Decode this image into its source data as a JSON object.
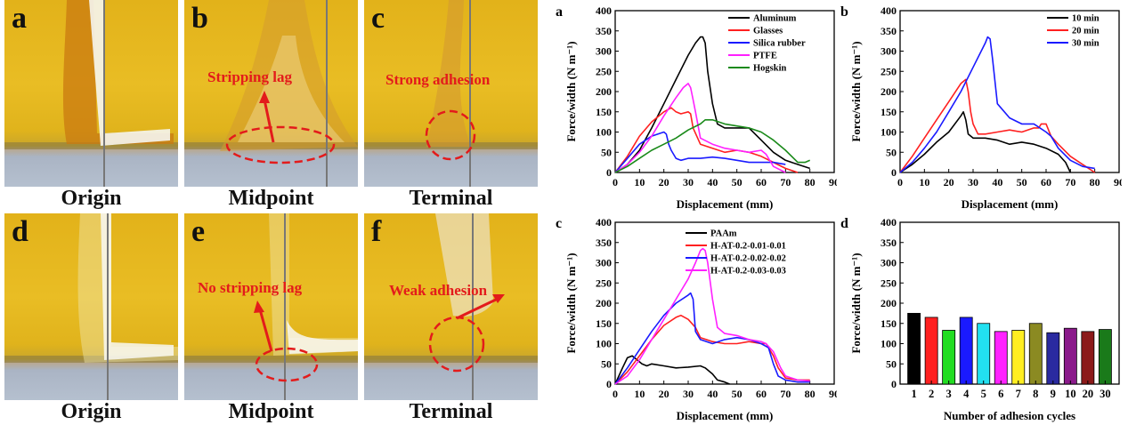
{
  "photos": [
    {
      "letter": "a",
      "caption": "Origin"
    },
    {
      "letter": "b",
      "caption": "Midpoint",
      "annotation": "Stripping lag"
    },
    {
      "letter": "c",
      "caption": "Terminal",
      "annotation": "Strong adhesion"
    },
    {
      "letter": "d",
      "caption": "Origin"
    },
    {
      "letter": "e",
      "caption": "Midpoint",
      "annotation": "No stripping lag"
    },
    {
      "letter": "f",
      "caption": "Terminal",
      "annotation": "Weak adhesion"
    }
  ],
  "chart_data": [
    {
      "panel": "a",
      "type": "line",
      "xlabel": "Displacement (mm)",
      "ylabel": "Force/width (N m⁻¹)",
      "xlim": [
        0,
        90
      ],
      "ylim": [
        0,
        400
      ],
      "xticks": [
        0,
        10,
        20,
        30,
        40,
        50,
        60,
        70,
        80,
        90
      ],
      "yticks": [
        0,
        50,
        100,
        150,
        200,
        250,
        300,
        350,
        400
      ],
      "series": [
        {
          "name": "Aluminum",
          "color": "#000000",
          "x": [
            0,
            5,
            10,
            15,
            20,
            25,
            30,
            33,
            35,
            36,
            37,
            38,
            40,
            42,
            45,
            50,
            55,
            60,
            65,
            70,
            75,
            80
          ],
          "y": [
            0,
            20,
            55,
            110,
            170,
            230,
            290,
            320,
            335,
            335,
            320,
            250,
            170,
            120,
            110,
            110,
            110,
            80,
            50,
            30,
            20,
            10
          ]
        },
        {
          "name": "Glasses",
          "color": "#ff2020",
          "x": [
            0,
            5,
            10,
            15,
            20,
            23,
            25,
            27,
            30,
            31,
            32,
            35,
            40,
            45,
            50,
            55,
            60,
            65,
            70,
            75
          ],
          "y": [
            0,
            40,
            90,
            125,
            150,
            160,
            150,
            145,
            150,
            145,
            110,
            70,
            60,
            50,
            55,
            50,
            40,
            25,
            10,
            0
          ]
        },
        {
          "name": "Silica rubber",
          "color": "#1a1aff",
          "x": [
            0,
            5,
            10,
            15,
            20,
            21,
            22,
            23,
            25,
            27,
            30,
            35,
            40,
            45,
            50,
            55,
            60,
            65,
            70
          ],
          "y": [
            0,
            35,
            70,
            90,
            100,
            95,
            70,
            55,
            35,
            30,
            35,
            35,
            38,
            35,
            30,
            25,
            25,
            25,
            20
          ]
        },
        {
          "name": "PTFE",
          "color": "#ff20ff",
          "x": [
            0,
            5,
            10,
            15,
            20,
            25,
            28,
            30,
            31,
            32,
            33,
            35,
            40,
            45,
            50,
            55,
            60,
            62,
            65,
            70
          ],
          "y": [
            0,
            20,
            50,
            90,
            140,
            185,
            210,
            220,
            210,
            180,
            150,
            85,
            70,
            60,
            55,
            50,
            55,
            45,
            15,
            0
          ]
        },
        {
          "name": "Hogskin",
          "color": "#1a8a1a",
          "x": [
            0,
            5,
            10,
            15,
            20,
            25,
            30,
            35,
            37,
            40,
            45,
            50,
            55,
            60,
            65,
            70,
            75,
            78,
            80
          ],
          "y": [
            0,
            15,
            35,
            55,
            70,
            85,
            105,
            120,
            130,
            130,
            120,
            115,
            110,
            100,
            80,
            55,
            25,
            25,
            30
          ]
        }
      ]
    },
    {
      "panel": "b",
      "type": "line",
      "xlabel": "Displacement (mm)",
      "ylabel": "Force/width (N m⁻¹)",
      "xlim": [
        0,
        90
      ],
      "ylim": [
        0,
        400
      ],
      "xticks": [
        0,
        10,
        20,
        30,
        40,
        50,
        60,
        70,
        80,
        90
      ],
      "yticks": [
        0,
        50,
        100,
        150,
        200,
        250,
        300,
        350,
        400
      ],
      "series": [
        {
          "name": "10 min",
          "color": "#000000",
          "x": [
            0,
            5,
            10,
            15,
            20,
            25,
            26,
            27,
            28,
            30,
            35,
            40,
            45,
            50,
            55,
            60,
            65,
            68,
            70
          ],
          "y": [
            0,
            20,
            45,
            75,
            100,
            140,
            150,
            130,
            95,
            85,
            85,
            80,
            70,
            75,
            70,
            60,
            45,
            25,
            0
          ]
        },
        {
          "name": "20 min",
          "color": "#ff2020",
          "x": [
            0,
            5,
            10,
            15,
            20,
            25,
            27,
            28,
            29,
            30,
            32,
            35,
            40,
            45,
            50,
            55,
            57,
            58,
            60,
            62,
            65,
            70,
            75,
            80
          ],
          "y": [
            0,
            40,
            85,
            130,
            175,
            220,
            230,
            200,
            150,
            120,
            95,
            95,
            100,
            105,
            100,
            110,
            110,
            120,
            120,
            90,
            70,
            40,
            20,
            0
          ]
        },
        {
          "name": "30 min",
          "color": "#1a1aff",
          "x": [
            0,
            5,
            10,
            15,
            20,
            25,
            30,
            35,
            36,
            37,
            38,
            40,
            45,
            50,
            55,
            60,
            62,
            65,
            70,
            75,
            80
          ],
          "y": [
            0,
            25,
            60,
            100,
            150,
            200,
            260,
            320,
            335,
            330,
            280,
            170,
            135,
            120,
            120,
            100,
            90,
            60,
            30,
            15,
            10
          ]
        }
      ]
    },
    {
      "panel": "c",
      "type": "line",
      "xlabel": "Displacement (mm)",
      "ylabel": "Force/width (N m⁻¹)",
      "xlim": [
        0,
        90
      ],
      "ylim": [
        0,
        400
      ],
      "xticks": [
        0,
        10,
        20,
        30,
        40,
        50,
        60,
        70,
        80,
        90
      ],
      "yticks": [
        0,
        50,
        100,
        150,
        200,
        250,
        300,
        350,
        400
      ],
      "series": [
        {
          "name": "PAAm",
          "color": "#000000",
          "x": [
            0,
            3,
            5,
            7,
            9,
            11,
            13,
            15,
            20,
            25,
            30,
            35,
            37,
            40,
            42,
            45,
            47
          ],
          "y": [
            0,
            40,
            65,
            70,
            60,
            50,
            45,
            50,
            45,
            40,
            42,
            45,
            40,
            25,
            10,
            5,
            0
          ]
        },
        {
          "name": "H-AT-0.2-0.01-0.01",
          "color": "#ff2020",
          "x": [
            0,
            5,
            10,
            15,
            20,
            25,
            27,
            30,
            33,
            35,
            40,
            45,
            50,
            55,
            60,
            62,
            65,
            67,
            70,
            75,
            80
          ],
          "y": [
            0,
            30,
            70,
            110,
            145,
            165,
            170,
            160,
            140,
            115,
            105,
            100,
            100,
            105,
            100,
            100,
            70,
            40,
            15,
            10,
            10
          ]
        },
        {
          "name": "H-AT-0.2-0.02-0.02",
          "color": "#1a1aff",
          "x": [
            0,
            5,
            10,
            15,
            20,
            25,
            30,
            31,
            32,
            33,
            35,
            40,
            45,
            50,
            55,
            60,
            63,
            65,
            67,
            70,
            75,
            80
          ],
          "y": [
            0,
            40,
            85,
            130,
            170,
            200,
            220,
            225,
            210,
            130,
            110,
            100,
            110,
            115,
            110,
            100,
            90,
            50,
            20,
            10,
            5,
            5
          ]
        },
        {
          "name": "H-AT-0.2-0.03-0.03",
          "color": "#ff20ff",
          "x": [
            0,
            5,
            10,
            15,
            20,
            25,
            30,
            33,
            35,
            36,
            37,
            38,
            40,
            42,
            45,
            50,
            55,
            60,
            62,
            65,
            68,
            70,
            75,
            80
          ],
          "y": [
            0,
            20,
            60,
            110,
            160,
            210,
            260,
            300,
            330,
            335,
            330,
            300,
            210,
            140,
            125,
            120,
            110,
            105,
            100,
            80,
            40,
            20,
            10,
            8
          ]
        }
      ]
    },
    {
      "panel": "d",
      "type": "bar",
      "xlabel": "Number of adhesion cycles",
      "ylabel": "Force/width (N m⁻¹)",
      "ylim": [
        0,
        400
      ],
      "yticks": [
        0,
        50,
        100,
        150,
        200,
        250,
        300,
        350,
        400
      ],
      "categories": [
        "1",
        "2",
        "3",
        "4",
        "5",
        "6",
        "7",
        "8",
        "9",
        "10",
        "20",
        "30"
      ],
      "values": [
        175,
        165,
        133,
        165,
        150,
        130,
        133,
        150,
        127,
        138,
        130,
        135
      ],
      "colors": [
        "#000000",
        "#ff2020",
        "#22dd22",
        "#1a1aff",
        "#22e0f0",
        "#ff22ff",
        "#ffee22",
        "#8b8a22",
        "#2a2aa0",
        "#8b1a8b",
        "#8b1a1a",
        "#1a7a1a"
      ]
    }
  ]
}
